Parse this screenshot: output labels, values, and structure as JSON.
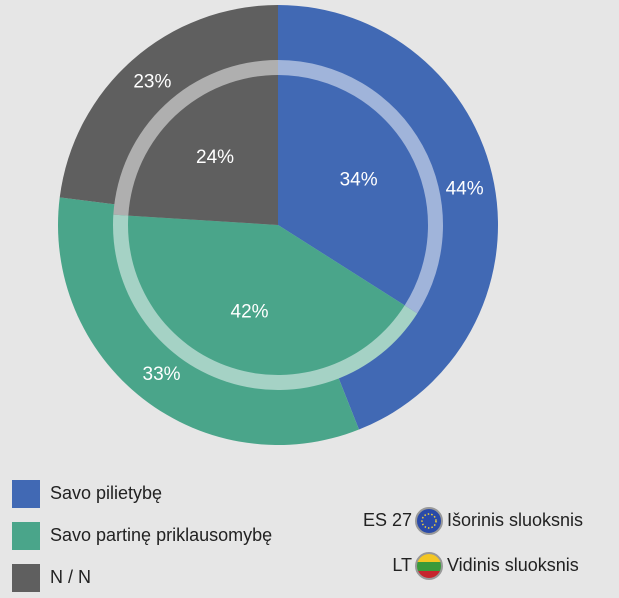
{
  "chart_data": {
    "type": "pie",
    "categories": [
      "Savo pilietybę",
      "Savo partinę priklausomybę",
      "N / N"
    ],
    "colors": [
      "#4169b4",
      "#4aa58a",
      "#5f5f5f"
    ],
    "series": [
      {
        "name": "Išorinis sluoksnis",
        "label": "ES 27",
        "values": [
          44,
          33,
          23
        ],
        "value_labels": [
          "44%",
          "33%",
          "23%"
        ]
      },
      {
        "name": "Vidinis sluoksnis",
        "label": "LT",
        "values": [
          34,
          42,
          24
        ],
        "value_labels": [
          "34%",
          "42%",
          "24%"
        ]
      }
    ]
  }
}
